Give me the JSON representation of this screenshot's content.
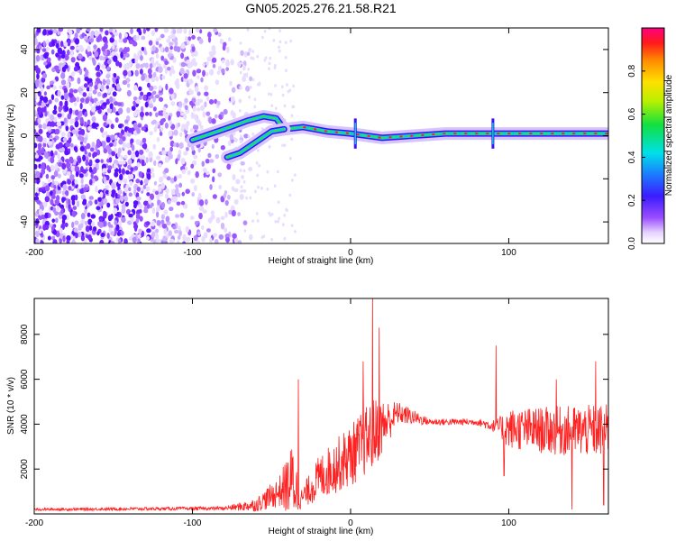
{
  "title": "GN05.2025.276.21.58.R21",
  "chart_data": [
    {
      "type": "heatmap",
      "name": "spectrogram",
      "xlabel": "Height of straight line (km)",
      "ylabel": "Frequency (Hz)",
      "xlim": [
        -200,
        163
      ],
      "ylim": [
        -50,
        50
      ],
      "xticks": [
        "-200",
        "-100",
        "0",
        "100"
      ],
      "yticks": [
        "-40",
        "-20",
        "0",
        "20",
        "40"
      ],
      "noise_region_x": [
        -200,
        -68
      ],
      "main_trace": [
        {
          "x": -100,
          "y": -2
        },
        {
          "x": -80,
          "y": 3
        },
        {
          "x": -65,
          "y": 7
        },
        {
          "x": -55,
          "y": 9
        },
        {
          "x": -47,
          "y": 8
        },
        {
          "x": -42,
          "y": 3
        },
        {
          "x": -30,
          "y": 4
        },
        {
          "x": -15,
          "y": 2
        },
        {
          "x": 0,
          "y": 1
        },
        {
          "x": 20,
          "y": -1
        },
        {
          "x": 40,
          "y": 0
        },
        {
          "x": 60,
          "y": 1
        },
        {
          "x": 90,
          "y": 1
        },
        {
          "x": 130,
          "y": 1
        },
        {
          "x": 163,
          "y": 1
        }
      ],
      "branch_trace": [
        {
          "x": -78,
          "y": -10
        },
        {
          "x": -70,
          "y": -8
        },
        {
          "x": -60,
          "y": -3
        },
        {
          "x": -50,
          "y": 2
        },
        {
          "x": -42,
          "y": 3
        }
      ],
      "spikes_x": [
        3,
        90
      ],
      "colorbar": {
        "label": "Normalized spectral amplitude",
        "range": [
          0.0,
          1.0
        ],
        "ticks": [
          "0.0",
          "0.2",
          "0.4",
          "0.6",
          "0.8"
        ]
      }
    },
    {
      "type": "line",
      "name": "snr",
      "xlabel": "Height of straight line (km)",
      "ylabel": "SNR (10 * v/v)",
      "xlim": [
        -200,
        163
      ],
      "ylim": [
        0,
        9600
      ],
      "xticks": [
        "-200",
        "-100",
        "0",
        "100"
      ],
      "yticks": [
        "2000",
        "4000",
        "6000",
        "8000"
      ],
      "color": "#ff2020",
      "envelope": [
        {
          "x": -200,
          "base": 200,
          "amp": 60
        },
        {
          "x": -80,
          "base": 250,
          "amp": 80
        },
        {
          "x": -60,
          "base": 400,
          "amp": 300
        },
        {
          "x": -45,
          "base": 1000,
          "amp": 700
        },
        {
          "x": -36,
          "base": 1500,
          "amp": 1800
        },
        {
          "x": -32,
          "base": 600,
          "amp": 400
        },
        {
          "x": -20,
          "base": 1600,
          "amp": 1000
        },
        {
          "x": 0,
          "base": 2600,
          "amp": 1400
        },
        {
          "x": 15,
          "base": 3600,
          "amp": 1600
        },
        {
          "x": 30,
          "base": 4500,
          "amp": 500
        },
        {
          "x": 50,
          "base": 4100,
          "amp": 150
        },
        {
          "x": 80,
          "base": 4100,
          "amp": 150
        },
        {
          "x": 92,
          "base": 3900,
          "amp": 300
        },
        {
          "x": 100,
          "base": 3800,
          "amp": 900
        },
        {
          "x": 130,
          "base": 3700,
          "amp": 1100
        },
        {
          "x": 163,
          "base": 3700,
          "amp": 1200
        }
      ],
      "peaks": [
        {
          "x": -33,
          "y": 6000
        },
        {
          "x": 8,
          "y": 6800
        },
        {
          "x": 14,
          "y": 9600
        },
        {
          "x": 18,
          "y": 8300
        },
        {
          "x": 92,
          "y": 7500
        },
        {
          "x": 130,
          "y": 6000
        },
        {
          "x": 140,
          "y": 6500
        },
        {
          "x": 155,
          "y": 6800
        }
      ],
      "dips": [
        {
          "x": 97,
          "y": 1700
        },
        {
          "x": 140,
          "y": 200
        },
        {
          "x": 160,
          "y": 400
        }
      ]
    }
  ]
}
